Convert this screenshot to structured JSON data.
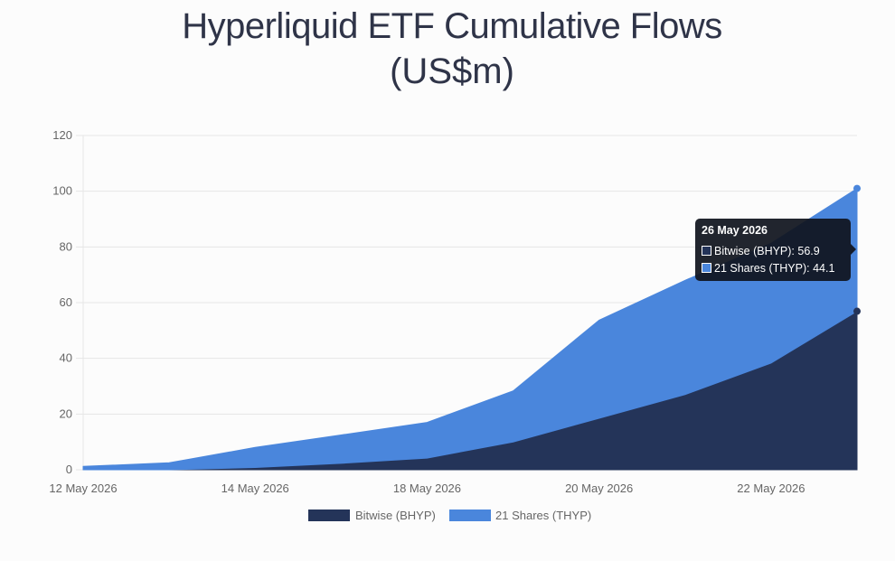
{
  "chart_data": {
    "type": "area",
    "stacked": true,
    "title": "Hyperliquid ETF Cumulative Flows",
    "subtitle": "(US$m)",
    "x": [
      "12 May 2026",
      "13 May 2026",
      "14 May 2026",
      "15 May 2026",
      "18 May 2026",
      "19 May 2026",
      "20 May 2026",
      "21 May 2026",
      "22 May 2026",
      "26 May 2026"
    ],
    "x_tick_labels": [
      "12 May 2026",
      "14 May 2026",
      "18 May 2026",
      "20 May 2026",
      "22 May 2026"
    ],
    "y_ticks": [
      0,
      20,
      40,
      60,
      80,
      100,
      120
    ],
    "ylim": [
      0,
      120
    ],
    "grid": true,
    "legend_position": "bottom",
    "series": [
      {
        "name": "Bitwise (BHYP)",
        "color": "#243459",
        "values": [
          0,
          0,
          0.8,
          2.3,
          4.2,
          10,
          18.5,
          27,
          38.3,
          56.9
        ]
      },
      {
        "name": "21 Shares (THYP)",
        "color": "#4a86dc",
        "values": [
          1.2,
          2.5,
          7.2,
          10.2,
          12.8,
          18.3,
          35.2,
          41,
          43,
          44.1
        ]
      }
    ]
  },
  "tooltip": {
    "title": "26 May 2026",
    "rows": [
      "Bitwise (BHYP): 56.9",
      "21 Shares (THYP): 44.1"
    ]
  }
}
